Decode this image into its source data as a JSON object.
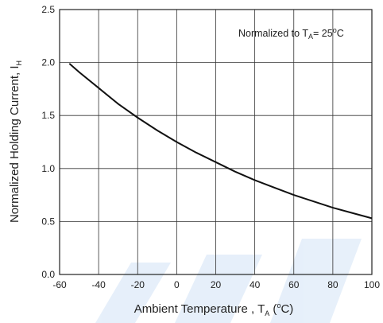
{
  "chart_data": {
    "type": "line",
    "title": "",
    "xlabel": {
      "main": "Ambient Temperature , T",
      "sub": "A",
      "open": " (",
      "sup": "o",
      "unit": "C)"
    },
    "ylabel": {
      "main": "Normalized Holding Current, I",
      "sub": "H"
    },
    "annotation": {
      "main": "Normalized to T",
      "sub": "A",
      "eq": "= 25",
      "sup": "o",
      "unit": "C"
    },
    "xlim": [
      -60,
      100
    ],
    "ylim": [
      0.0,
      2.5
    ],
    "x_ticks": [
      "-60",
      "-40",
      "-20",
      "0",
      "20",
      "40",
      "60",
      "80",
      "100"
    ],
    "y_ticks": [
      "0.0",
      "0.5",
      "1.0",
      "1.5",
      "2.0",
      "2.5"
    ],
    "grid": true,
    "series": [
      {
        "name": "",
        "x": [
          -55,
          -50,
          -40,
          -30,
          -20,
          -10,
          0,
          10,
          20,
          30,
          40,
          50,
          60,
          70,
          80,
          90,
          100
        ],
        "y": [
          1.99,
          1.91,
          1.76,
          1.61,
          1.48,
          1.36,
          1.25,
          1.15,
          1.06,
          0.97,
          0.89,
          0.82,
          0.75,
          0.69,
          0.63,
          0.58,
          0.53
        ]
      }
    ]
  }
}
